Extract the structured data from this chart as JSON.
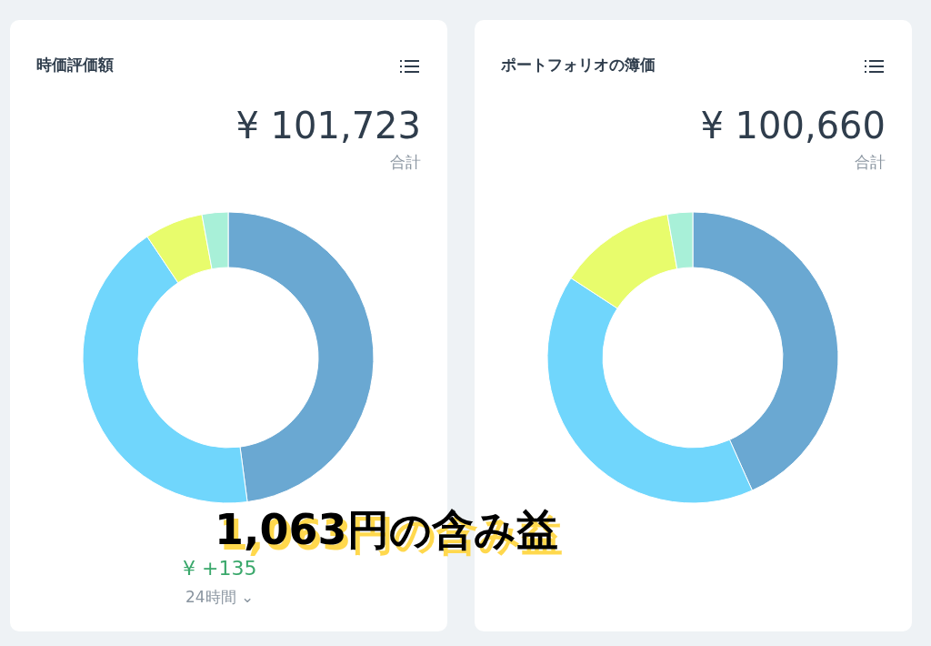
{
  "chart_data": [
    {
      "type": "donut",
      "title": "時価評価額",
      "categories": [
        null,
        null,
        null,
        null
      ],
      "values": [
        47.9,
        42.7,
        6.5,
        2.9
      ],
      "colors": [
        "#6aa8d2",
        "#70d6fc",
        "#e8fc6c",
        "#a8f0d8"
      ],
      "annotations": [
        "¥ 101,723",
        "合計",
        "¥ +135",
        "24時間 ⌄",
        "1,063円の含み益"
      ]
    },
    {
      "type": "donut",
      "title": "ポートフォリオの簿価",
      "categories": [
        null,
        null,
        null,
        null
      ],
      "values": [
        43.3,
        40.9,
        13.0,
        2.8
      ],
      "colors": [
        "#6aa8d2",
        "#70d6fc",
        "#e8fc6c",
        "#a8f0d8"
      ],
      "annotations": [
        "¥ 100,660",
        "合計"
      ]
    }
  ]
}
